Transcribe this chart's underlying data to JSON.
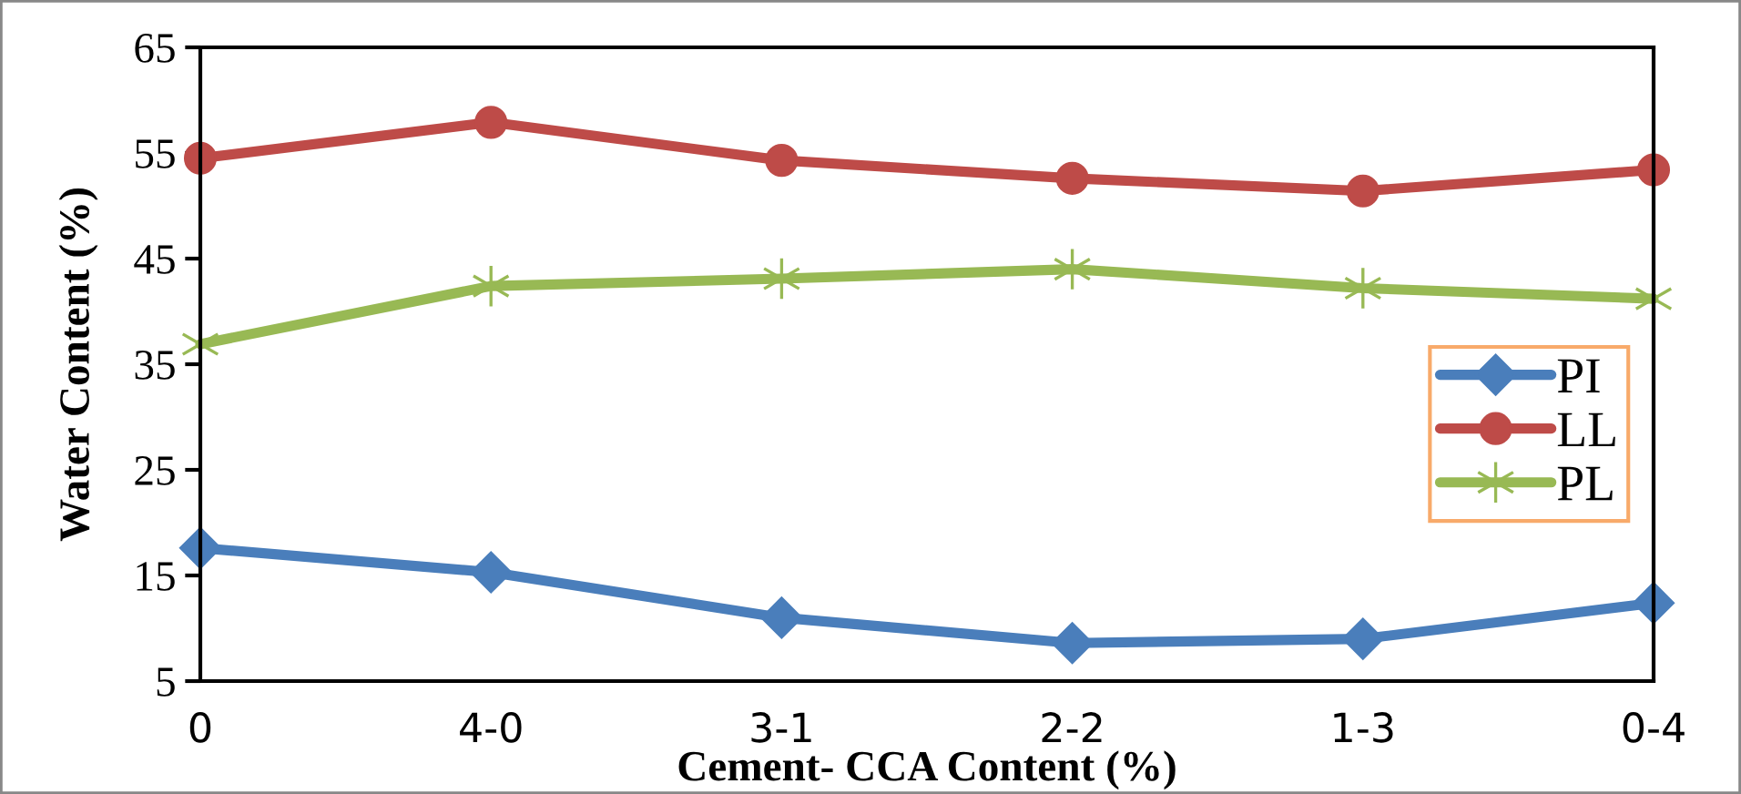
{
  "chart_data": {
    "type": "line",
    "xlabel": "Cement- CCA Content (%)",
    "ylabel": "Water Content (%)",
    "categories": [
      "0",
      "4-0",
      "3-1",
      "2-2",
      "1-3",
      "0-4"
    ],
    "series": [
      {
        "name": "PI",
        "color": "#4a7ebb",
        "marker": "diamond",
        "values": [
          17.6,
          15.3,
          11.0,
          8.6,
          9.0,
          12.4
        ]
      },
      {
        "name": "LL",
        "color": "#be4b48",
        "marker": "circle",
        "values": [
          54.5,
          57.9,
          54.3,
          52.6,
          51.4,
          53.4
        ]
      },
      {
        "name": "PL",
        "color": "#98b954",
        "marker": "cross",
        "values": [
          36.9,
          42.4,
          43.1,
          44.0,
          42.2,
          41.2
        ]
      }
    ],
    "ylim": [
      5,
      65
    ],
    "yticks": [
      5,
      15,
      25,
      35,
      45,
      55,
      65
    ],
    "grid": false,
    "legend": "right",
    "line_style": "solid"
  }
}
